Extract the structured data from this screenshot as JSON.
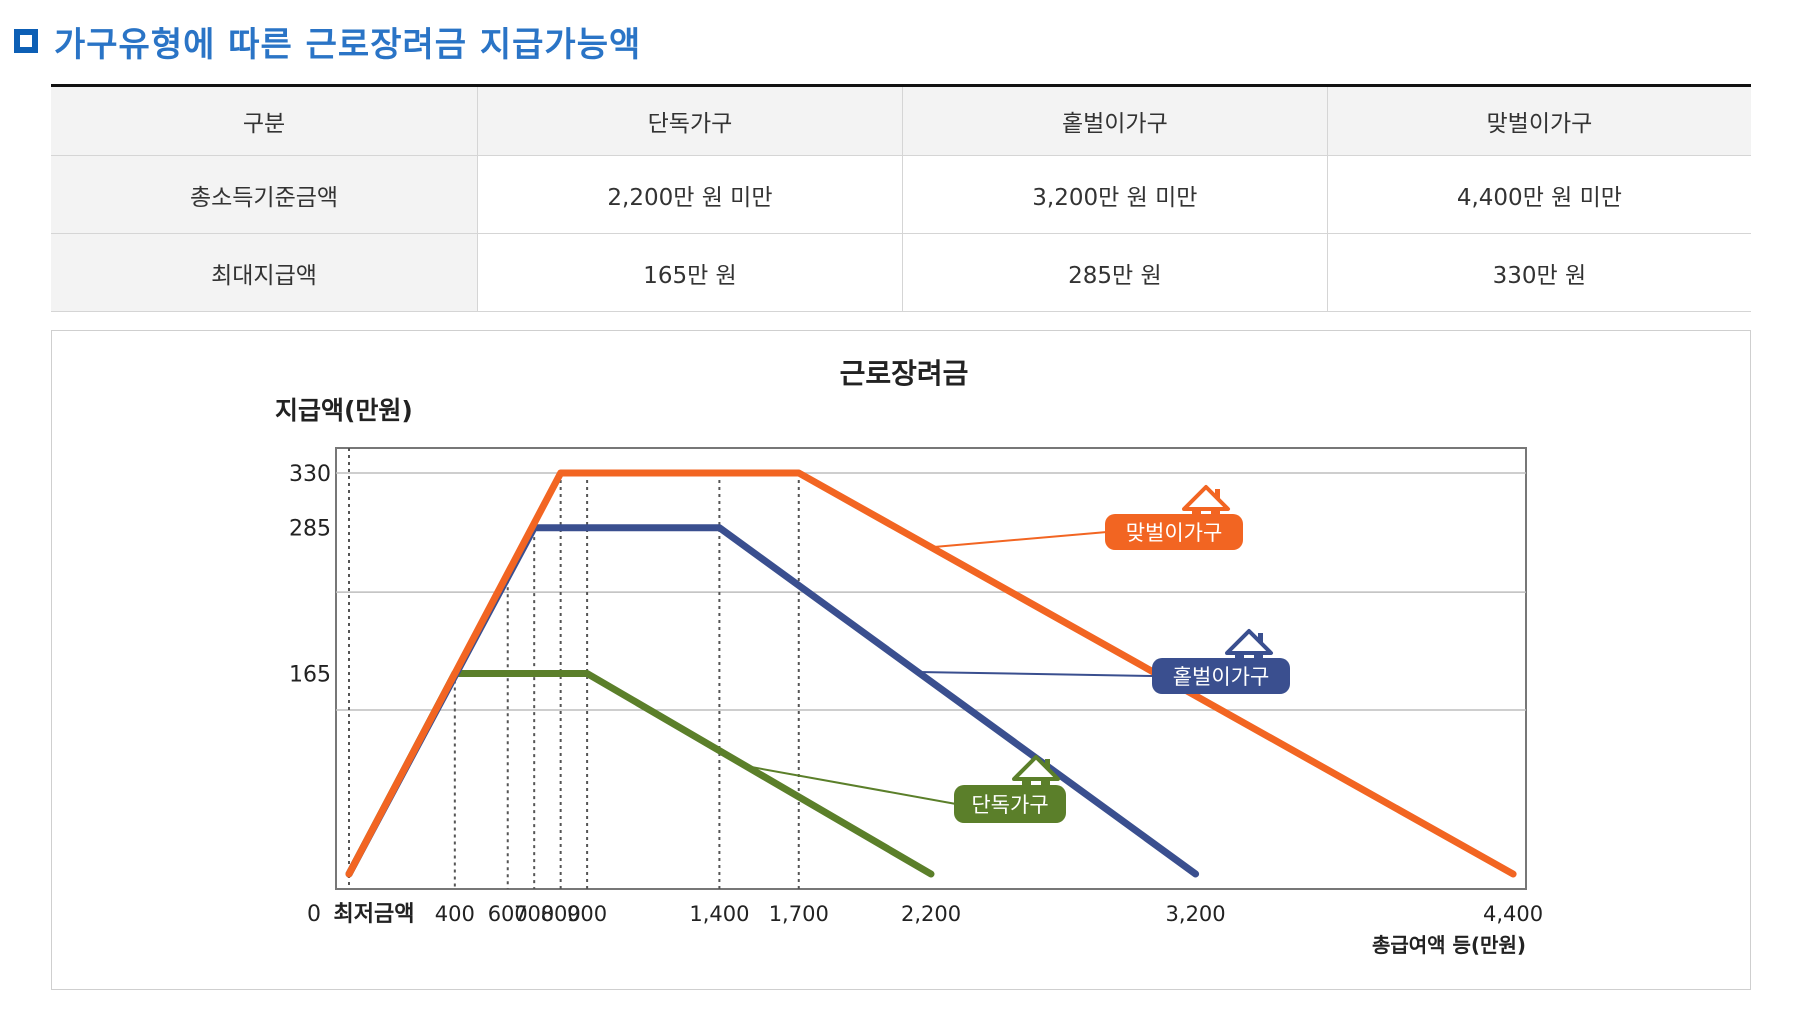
{
  "header": {
    "title": "가구유형에 따른 근로장려금 지급가능액"
  },
  "table": {
    "columns": [
      "구분",
      "단독가구",
      "홑벌이가구",
      "맞벌이가구"
    ],
    "rows": [
      {
        "label": "총소득기준금액",
        "values": [
          "2,200만 원 미만",
          "3,200만 원 미만",
          "4,400만 원 미만"
        ]
      },
      {
        "label": "최대지급액",
        "values": [
          "165만 원",
          "285만 원",
          "330만 원"
        ]
      }
    ]
  },
  "chart_data": {
    "type": "line",
    "title": "근로장려금",
    "ylabel": "지급액(만원)",
    "xlabel": "총급여액 등(만원)",
    "x_origin_label": "0",
    "x_min_label": "최저금액",
    "x_ticks": [
      400,
      600,
      700,
      800,
      900,
      1400,
      1700,
      2200,
      3200,
      4400
    ],
    "x_tick_labels": [
      "400",
      "600",
      "700",
      "800",
      "900",
      "1,400",
      "1,700",
      "2,200",
      "3,200",
      "4,400"
    ],
    "y_ticks": [
      165,
      285,
      330
    ],
    "y_tick_labels": [
      "165",
      "285",
      "330"
    ],
    "xlim": [
      0,
      4600
    ],
    "ylim": [
      0,
      370
    ],
    "series": [
      {
        "name": "맞벌이가구",
        "color": "#f26522",
        "points": [
          [
            0,
            0
          ],
          [
            800,
            330
          ],
          [
            1700,
            330
          ],
          [
            4400,
            0
          ]
        ]
      },
      {
        "name": "홑벌이가구",
        "color": "#3a4f8f",
        "points": [
          [
            0,
            0
          ],
          [
            700,
            285
          ],
          [
            1400,
            285
          ],
          [
            3200,
            0
          ]
        ]
      },
      {
        "name": "단독가구",
        "color": "#5b7f2a",
        "points": [
          [
            0,
            0
          ],
          [
            400,
            165
          ],
          [
            900,
            165
          ],
          [
            2200,
            0
          ]
        ]
      }
    ]
  }
}
